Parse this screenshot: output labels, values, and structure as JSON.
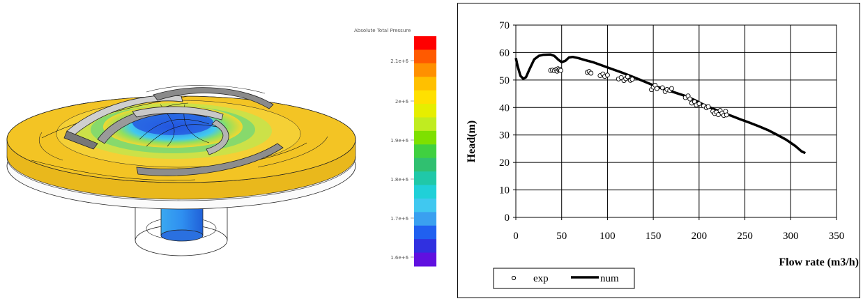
{
  "colorbar": {
    "title": "Absolute Total Pressure",
    "tick_labels": [
      "2.1e+6",
      "2e+6",
      "1.9e+6",
      "1.8e+6",
      "1.7e+6",
      "1.6e+6"
    ],
    "colors": [
      "#ff0000",
      "#ff5a00",
      "#ff9000",
      "#ffc000",
      "#ffe000",
      "#e6ee00",
      "#c0ec20",
      "#7ee000",
      "#40d040",
      "#30c070",
      "#20c8a8",
      "#20d0d8",
      "#40c8f0",
      "#3aa0f0",
      "#2060f0",
      "#3030e0",
      "#6010e0"
    ]
  },
  "chart_data": {
    "type": "scatter",
    "xlabel": "Flow rate (m3/h)",
    "ylabel": "Head(m)",
    "xlim": [
      0,
      350
    ],
    "ylim": [
      0,
      70
    ],
    "xticks": [
      "0",
      "50",
      "100",
      "150",
      "200",
      "250",
      "300",
      "350"
    ],
    "yticks": [
      "0",
      "10",
      "20",
      "30",
      "40",
      "50",
      "60",
      "70"
    ],
    "grid": true,
    "legend_position": "bottom-left",
    "series": [
      {
        "name": "exp",
        "type": "scatter",
        "marker": "open-circle",
        "points": [
          [
            38,
            53.5
          ],
          [
            40,
            53.6
          ],
          [
            42,
            53.4
          ],
          [
            44,
            53.8
          ],
          [
            45,
            53.2
          ],
          [
            46,
            54.1
          ],
          [
            47,
            53.7
          ],
          [
            48,
            53.9
          ],
          [
            49,
            53.5
          ],
          [
            78,
            52.8
          ],
          [
            80,
            53.1
          ],
          [
            82,
            52.5
          ],
          [
            92,
            51.6
          ],
          [
            95,
            52.2
          ],
          [
            97,
            51.3
          ],
          [
            100,
            51.8
          ],
          [
            112,
            50.4
          ],
          [
            115,
            50.9
          ],
          [
            118,
            49.8
          ],
          [
            120,
            50.5
          ],
          [
            122,
            51.2
          ],
          [
            125,
            49.9
          ],
          [
            127,
            50.3
          ],
          [
            148,
            46.5
          ],
          [
            150,
            47.4
          ],
          [
            152,
            48.1
          ],
          [
            154,
            46.9
          ],
          [
            160,
            47.2
          ],
          [
            163,
            45.8
          ],
          [
            165,
            46.6
          ],
          [
            168,
            46.2
          ],
          [
            170,
            46.9
          ],
          [
            185,
            43.6
          ],
          [
            188,
            44.2
          ],
          [
            190,
            43.1
          ],
          [
            192,
            41.6
          ],
          [
            195,
            42.1
          ],
          [
            197,
            40.9
          ],
          [
            200,
            41.4
          ],
          [
            205,
            40.6
          ],
          [
            208,
            39.9
          ],
          [
            210,
            40.3
          ],
          [
            215,
            38.6
          ],
          [
            217,
            37.8
          ],
          [
            219,
            38.3
          ],
          [
            221,
            37.4
          ],
          [
            223,
            38.9
          ],
          [
            225,
            37.9
          ],
          [
            227,
            37.1
          ],
          [
            229,
            38.6
          ],
          [
            230,
            37.3
          ]
        ]
      },
      {
        "name": "num",
        "type": "line",
        "points": [
          [
            0,
            58
          ],
          [
            2,
            55
          ],
          [
            5,
            51.5
          ],
          [
            8,
            50.5
          ],
          [
            11,
            51
          ],
          [
            15,
            54
          ],
          [
            20,
            57.5
          ],
          [
            25,
            58.8
          ],
          [
            30,
            59.2
          ],
          [
            38,
            59.3
          ],
          [
            42,
            58.8
          ],
          [
            46,
            57.5
          ],
          [
            50,
            56.5
          ],
          [
            54,
            57
          ],
          [
            58,
            58.2
          ],
          [
            62,
            58.4
          ],
          [
            68,
            58
          ],
          [
            75,
            57.3
          ],
          [
            85,
            56.4
          ],
          [
            95,
            55.2
          ],
          [
            105,
            54
          ],
          [
            115,
            52.8
          ],
          [
            125,
            51.5
          ],
          [
            135,
            50.2
          ],
          [
            145,
            48.8
          ],
          [
            155,
            47.4
          ],
          [
            165,
            46.4
          ],
          [
            175,
            45.3
          ],
          [
            185,
            44.2
          ],
          [
            195,
            42.7
          ],
          [
            205,
            41
          ],
          [
            215,
            39.6
          ],
          [
            225,
            38.2
          ],
          [
            235,
            37
          ],
          [
            245,
            35.7
          ],
          [
            255,
            34.5
          ],
          [
            265,
            33.2
          ],
          [
            275,
            31.8
          ],
          [
            285,
            30.1
          ],
          [
            295,
            28.3
          ],
          [
            305,
            26
          ],
          [
            312,
            24
          ],
          [
            316,
            23.4
          ]
        ]
      }
    ]
  }
}
